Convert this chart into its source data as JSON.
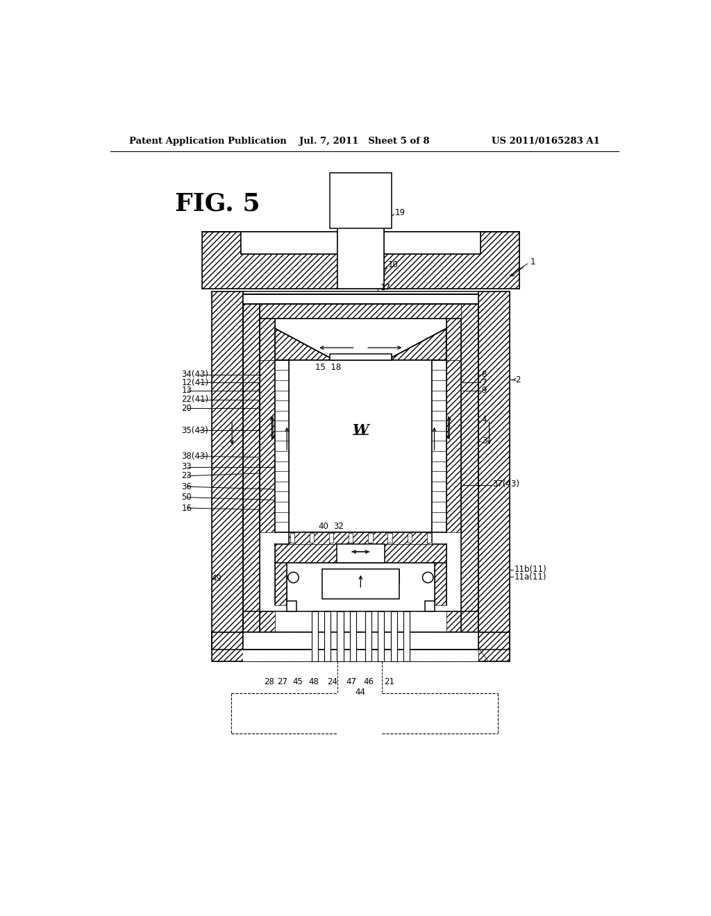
{
  "header_left": "Patent Application Publication",
  "header_center": "Jul. 7, 2011   Sheet 5 of 8",
  "header_right": "US 2011/0165283 A1",
  "fig_label": "FIG. 5",
  "bg_color": "#ffffff",
  "lw_thin": 0.7,
  "lw_main": 1.1,
  "lw_thick": 1.8
}
